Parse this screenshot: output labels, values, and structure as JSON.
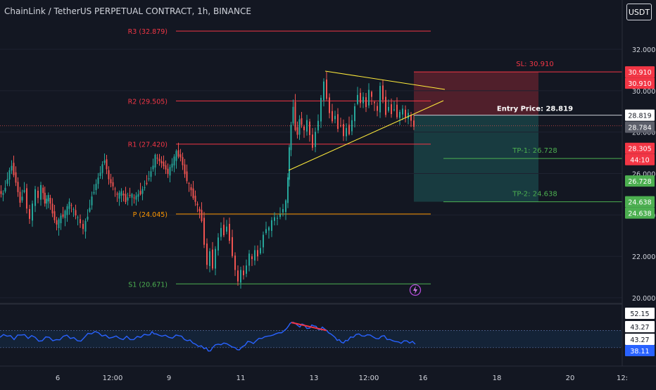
{
  "header": {
    "title": "ChainLink / TetherUS PERPETUAL CONTRACT, 1h, BINANCE",
    "currency_button": "USDT"
  },
  "colors": {
    "background": "#131722",
    "up": "#26a69a",
    "down": "#ef5350",
    "pivot_red": "#f23645",
    "pivot_orange": "#ff9800",
    "pivot_green": "#4caf50",
    "trendline": "#ffeb3b",
    "rsi_line": "#2962ff",
    "text": "#d1d4dc"
  },
  "chart_data": [
    {
      "type": "candlestick",
      "title": "ChainLink / TetherUS PERPETUAL CONTRACT, 1h, BINANCE",
      "timeframe": "1h",
      "x_tick_labels": [
        "6",
        "12:00",
        "9",
        "11",
        "13",
        "12:00",
        "16",
        "18",
        "20",
        "12:"
      ],
      "y_axis_ticks": [
        "32.000",
        "30.000",
        "28.000",
        "26.000",
        "24.000",
        "22.000",
        "20.000"
      ],
      "ylim": [
        19.8,
        33.5
      ],
      "series_close_path": [
        {
          "x": 0,
          "y": 25.1
        },
        {
          "x": 6,
          "y": 25.0
        },
        {
          "x": 12,
          "y": 25.8
        },
        {
          "x": 18,
          "y": 26.4
        },
        {
          "x": 24,
          "y": 25.6
        },
        {
          "x": 30,
          "y": 24.6
        },
        {
          "x": 36,
          "y": 25.3
        },
        {
          "x": 40,
          "y": 24.3
        },
        {
          "x": 44,
          "y": 23.8
        },
        {
          "x": 48,
          "y": 24.5
        },
        {
          "x": 52,
          "y": 25.2
        },
        {
          "x": 56,
          "y": 24.8
        },
        {
          "x": 60,
          "y": 25.4
        },
        {
          "x": 65,
          "y": 24.6
        },
        {
          "x": 70,
          "y": 24.9
        },
        {
          "x": 76,
          "y": 24.1
        },
        {
          "x": 82,
          "y": 23.5
        },
        {
          "x": 88,
          "y": 23.9
        },
        {
          "x": 94,
          "y": 24.1
        },
        {
          "x": 100,
          "y": 24.6
        },
        {
          "x": 106,
          "y": 24.2
        },
        {
          "x": 112,
          "y": 23.8
        },
        {
          "x": 116,
          "y": 23.6
        },
        {
          "x": 120,
          "y": 23.3
        },
        {
          "x": 126,
          "y": 24.0
        },
        {
          "x": 132,
          "y": 24.9
        },
        {
          "x": 138,
          "y": 25.5
        },
        {
          "x": 144,
          "y": 26.1
        },
        {
          "x": 150,
          "y": 26.7
        },
        {
          "x": 156,
          "y": 25.7
        },
        {
          "x": 162,
          "y": 25.4
        },
        {
          "x": 168,
          "y": 24.9
        },
        {
          "x": 174,
          "y": 25.1
        },
        {
          "x": 180,
          "y": 24.7
        },
        {
          "x": 186,
          "y": 25.0
        },
        {
          "x": 192,
          "y": 24.8
        },
        {
          "x": 198,
          "y": 25.0
        },
        {
          "x": 204,
          "y": 25.2
        },
        {
          "x": 210,
          "y": 25.6
        },
        {
          "x": 216,
          "y": 26.1
        },
        {
          "x": 222,
          "y": 26.8
        },
        {
          "x": 228,
          "y": 26.6
        },
        {
          "x": 234,
          "y": 26.4
        },
        {
          "x": 240,
          "y": 26.0
        },
        {
          "x": 246,
          "y": 26.5
        },
        {
          "x": 252,
          "y": 27.0
        },
        {
          "x": 258,
          "y": 26.8
        },
        {
          "x": 264,
          "y": 26.0
        },
        {
          "x": 270,
          "y": 25.4
        },
        {
          "x": 276,
          "y": 24.9
        },
        {
          "x": 282,
          "y": 24.4
        },
        {
          "x": 288,
          "y": 23.8
        },
        {
          "x": 292,
          "y": 22.6
        },
        {
          "x": 296,
          "y": 21.6
        },
        {
          "x": 300,
          "y": 22.2
        },
        {
          "x": 304,
          "y": 21.5
        },
        {
          "x": 308,
          "y": 22.3
        },
        {
          "x": 312,
          "y": 22.9
        },
        {
          "x": 316,
          "y": 23.4
        },
        {
          "x": 320,
          "y": 23.1
        },
        {
          "x": 324,
          "y": 23.5
        },
        {
          "x": 328,
          "y": 22.8
        },
        {
          "x": 332,
          "y": 22.1
        },
        {
          "x": 336,
          "y": 21.3
        },
        {
          "x": 340,
          "y": 20.8
        },
        {
          "x": 344,
          "y": 21.3
        },
        {
          "x": 348,
          "y": 21.1
        },
        {
          "x": 352,
          "y": 21.6
        },
        {
          "x": 356,
          "y": 22.1
        },
        {
          "x": 360,
          "y": 21.8
        },
        {
          "x": 364,
          "y": 22.3
        },
        {
          "x": 368,
          "y": 22.0
        },
        {
          "x": 372,
          "y": 22.5
        },
        {
          "x": 376,
          "y": 23.0
        },
        {
          "x": 380,
          "y": 23.4
        },
        {
          "x": 384,
          "y": 23.3
        },
        {
          "x": 388,
          "y": 23.7
        },
        {
          "x": 392,
          "y": 23.9
        },
        {
          "x": 396,
          "y": 23.8
        },
        {
          "x": 400,
          "y": 24.1
        },
        {
          "x": 404,
          "y": 24.3
        },
        {
          "x": 408,
          "y": 24.6
        },
        {
          "x": 410,
          "y": 25.8
        },
        {
          "x": 412,
          "y": 27.2
        },
        {
          "x": 415,
          "y": 28.3
        },
        {
          "x": 418,
          "y": 29.3
        },
        {
          "x": 421,
          "y": 28.2
        },
        {
          "x": 424,
          "y": 27.9
        },
        {
          "x": 427,
          "y": 28.6
        },
        {
          "x": 430,
          "y": 28.4
        },
        {
          "x": 434,
          "y": 28.0
        },
        {
          "x": 438,
          "y": 28.6
        },
        {
          "x": 442,
          "y": 27.8
        },
        {
          "x": 446,
          "y": 27.3
        },
        {
          "x": 450,
          "y": 28.0
        },
        {
          "x": 454,
          "y": 28.6
        },
        {
          "x": 458,
          "y": 29.6
        },
        {
          "x": 462,
          "y": 30.4
        },
        {
          "x": 466,
          "y": 29.7
        },
        {
          "x": 470,
          "y": 28.9
        },
        {
          "x": 474,
          "y": 28.6
        },
        {
          "x": 478,
          "y": 28.8
        },
        {
          "x": 482,
          "y": 28.2
        },
        {
          "x": 486,
          "y": 28.4
        },
        {
          "x": 490,
          "y": 27.8
        },
        {
          "x": 494,
          "y": 28.2
        },
        {
          "x": 498,
          "y": 28.0
        },
        {
          "x": 502,
          "y": 28.6
        },
        {
          "x": 506,
          "y": 29.2
        },
        {
          "x": 510,
          "y": 29.9
        },
        {
          "x": 514,
          "y": 29.4
        },
        {
          "x": 518,
          "y": 29.7
        },
        {
          "x": 522,
          "y": 29.2
        },
        {
          "x": 526,
          "y": 30.1
        },
        {
          "x": 530,
          "y": 29.6
        },
        {
          "x": 534,
          "y": 29.3
        },
        {
          "x": 538,
          "y": 29.0
        },
        {
          "x": 542,
          "y": 30.2
        },
        {
          "x": 546,
          "y": 29.6
        },
        {
          "x": 550,
          "y": 28.9
        },
        {
          "x": 554,
          "y": 29.3
        },
        {
          "x": 558,
          "y": 28.9
        },
        {
          "x": 562,
          "y": 29.2
        },
        {
          "x": 566,
          "y": 28.8
        },
        {
          "x": 570,
          "y": 28.9
        },
        {
          "x": 574,
          "y": 29.1
        },
        {
          "x": 578,
          "y": 28.7
        },
        {
          "x": 582,
          "y": 28.9
        },
        {
          "x": 586,
          "y": 28.5
        },
        {
          "x": 590,
          "y": 28.3
        }
      ],
      "current_price": 28.305,
      "countdown": "44:10",
      "pivot_levels": [
        {
          "label": "R3 (32.879)",
          "value": 32.879
        },
        {
          "label": "R2 (29.505)",
          "value": 29.505
        },
        {
          "label": "R1 (27.420)",
          "value": 27.42
        },
        {
          "label": "P (24.045)",
          "value": 24.045
        },
        {
          "label": "S1 (20.671)",
          "value": 20.671
        }
      ],
      "trade_setup": {
        "stop_loss_label": "SL: 30.910",
        "stop_loss": 30.91,
        "entry_label": "Entry Price:",
        "entry_price": "28.819",
        "tp1_label": "TP-1: 26.728",
        "tp1": 26.728,
        "tp2_label": "TP-2: 24.638",
        "tp2": 24.638
      },
      "price_tags": [
        {
          "text": "30.910",
          "value": 30.91,
          "kind": "red"
        },
        {
          "text": "30.910",
          "value": 30.91,
          "kind": "red"
        },
        {
          "text": "28.819",
          "value": 28.819,
          "kind": "white"
        },
        {
          "text": "28.784",
          "value": 28.784,
          "kind": "gray"
        },
        {
          "text": "28.305",
          "value": 28.305,
          "kind": "red"
        },
        {
          "text": "44:10",
          "value": 28.305,
          "kind": "red_sub"
        },
        {
          "text": "26.728",
          "value": 26.728,
          "kind": "green"
        },
        {
          "text": "24.638",
          "value": 24.638,
          "kind": "green"
        },
        {
          "text": "24.638",
          "value": 24.638,
          "kind": "green"
        }
      ]
    },
    {
      "type": "line",
      "indicator": "RSI",
      "y_tags": [
        "52.15",
        "43.27",
        "43.27",
        "38.11"
      ],
      "ylim": [
        25,
        70
      ],
      "band": [
        35,
        50
      ],
      "series": [
        {
          "values": [
            {
              "x": 0,
              "y": 44
            },
            {
              "x": 10,
              "y": 45
            },
            {
              "x": 20,
              "y": 42
            },
            {
              "x": 30,
              "y": 46
            },
            {
              "x": 40,
              "y": 43
            },
            {
              "x": 50,
              "y": 44
            },
            {
              "x": 60,
              "y": 41
            },
            {
              "x": 70,
              "y": 44
            },
            {
              "x": 80,
              "y": 42
            },
            {
              "x": 90,
              "y": 45
            },
            {
              "x": 100,
              "y": 43
            },
            {
              "x": 110,
              "y": 41
            },
            {
              "x": 120,
              "y": 44
            },
            {
              "x": 130,
              "y": 47
            },
            {
              "x": 140,
              "y": 48
            },
            {
              "x": 150,
              "y": 46
            },
            {
              "x": 160,
              "y": 44
            },
            {
              "x": 170,
              "y": 43
            },
            {
              "x": 180,
              "y": 45
            },
            {
              "x": 190,
              "y": 42
            },
            {
              "x": 200,
              "y": 44
            },
            {
              "x": 210,
              "y": 46
            },
            {
              "x": 216,
              "y": 49
            },
            {
              "x": 222,
              "y": 47
            },
            {
              "x": 230,
              "y": 45
            },
            {
              "x": 240,
              "y": 44
            },
            {
              "x": 250,
              "y": 46
            },
            {
              "x": 258,
              "y": 45
            },
            {
              "x": 266,
              "y": 41
            },
            {
              "x": 274,
              "y": 39
            },
            {
              "x": 282,
              "y": 36
            },
            {
              "x": 290,
              "y": 34
            },
            {
              "x": 296,
              "y": 32
            },
            {
              "x": 302,
              "y": 35
            },
            {
              "x": 310,
              "y": 38
            },
            {
              "x": 318,
              "y": 39
            },
            {
              "x": 326,
              "y": 37
            },
            {
              "x": 334,
              "y": 35
            },
            {
              "x": 340,
              "y": 33
            },
            {
              "x": 348,
              "y": 37
            },
            {
              "x": 356,
              "y": 40
            },
            {
              "x": 364,
              "y": 41
            },
            {
              "x": 372,
              "y": 43
            },
            {
              "x": 380,
              "y": 45
            },
            {
              "x": 388,
              "y": 46
            },
            {
              "x": 396,
              "y": 48
            },
            {
              "x": 404,
              "y": 50
            },
            {
              "x": 410,
              "y": 54
            },
            {
              "x": 414,
              "y": 57
            },
            {
              "x": 420,
              "y": 56
            },
            {
              "x": 426,
              "y": 53
            },
            {
              "x": 432,
              "y": 55
            },
            {
              "x": 440,
              "y": 52
            },
            {
              "x": 446,
              "y": 54
            },
            {
              "x": 452,
              "y": 51
            },
            {
              "x": 458,
              "y": 53
            },
            {
              "x": 464,
              "y": 50
            },
            {
              "x": 470,
              "y": 47
            },
            {
              "x": 476,
              "y": 44
            },
            {
              "x": 482,
              "y": 42
            },
            {
              "x": 488,
              "y": 39
            },
            {
              "x": 494,
              "y": 41
            },
            {
              "x": 502,
              "y": 44
            },
            {
              "x": 510,
              "y": 47
            },
            {
              "x": 518,
              "y": 45
            },
            {
              "x": 526,
              "y": 46
            },
            {
              "x": 534,
              "y": 43
            },
            {
              "x": 542,
              "y": 45
            },
            {
              "x": 550,
              "y": 42
            },
            {
              "x": 558,
              "y": 41
            },
            {
              "x": 566,
              "y": 40
            },
            {
              "x": 574,
              "y": 41
            },
            {
              "x": 582,
              "y": 39
            },
            {
              "x": 590,
              "y": 38
            }
          ]
        }
      ]
    }
  ]
}
